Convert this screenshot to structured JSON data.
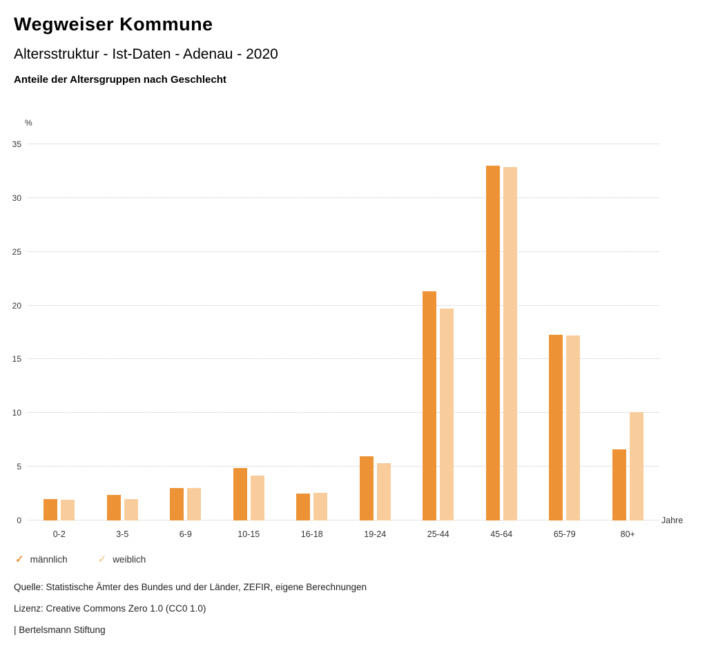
{
  "header": {
    "title": "Wegweiser Kommune",
    "subtitle": "Altersstruktur - Ist-Daten - Adenau - 2020"
  },
  "chart_data": {
    "type": "bar",
    "title": "Anteile der Altersgruppen nach Geschlecht",
    "categories": [
      "0-2",
      "3-5",
      "6-9",
      "10-15",
      "16-18",
      "19-24",
      "25-44",
      "45-64",
      "65-79",
      "80+"
    ],
    "series": [
      {
        "name": "männlich",
        "key": "maennlich",
        "color": "#EE9335",
        "values": [
          2.0,
          2.4,
          3.0,
          4.9,
          2.5,
          6.0,
          21.3,
          33.0,
          17.3,
          6.6
        ]
      },
      {
        "name": "weiblich",
        "key": "weiblich",
        "color": "#F9CD9B",
        "values": [
          1.9,
          2.0,
          3.0,
          4.2,
          2.6,
          5.3,
          19.7,
          32.9,
          17.2,
          10.1
        ]
      }
    ],
    "ylabel": "%",
    "xlabel": "Jahre",
    "ylim": [
      0,
      35
    ],
    "yticks": [
      0,
      5,
      10,
      15,
      20,
      25,
      30,
      35
    ],
    "grid": "dotted horizontal",
    "legend_position": "bottom-left"
  },
  "legend": {
    "check_glyph": "✓"
  },
  "footer": {
    "source": "Quelle: Statistische Ämter des Bundes und der Länder, ZEFIR, eigene Berechnungen",
    "license": "Lizenz: Creative Commons Zero 1.0 (CC0 1.0)",
    "attribution": "| Bertelsmann Stiftung"
  }
}
